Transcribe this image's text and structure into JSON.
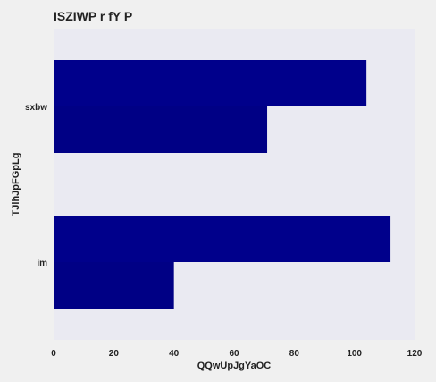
{
  "chart_data": {
    "type": "bar",
    "orientation": "horizontal",
    "title": "ISZIWP r fY P",
    "xlabel": "QQwUpJgYaOC",
    "ylabel": "TJlhJpFGpLg",
    "categories": [
      "sxbw",
      "im"
    ],
    "series": [
      {
        "values": [
          104,
          112
        ],
        "color": "#00008b"
      },
      {
        "values": [
          71,
          40
        ],
        "color": "#000085"
      }
    ],
    "xlim": [
      0,
      120
    ],
    "xticks": [
      "0",
      "20",
      "40",
      "60",
      "80",
      "100",
      "120"
    ],
    "grid": false,
    "plot_background": "#eaeaf2"
  }
}
